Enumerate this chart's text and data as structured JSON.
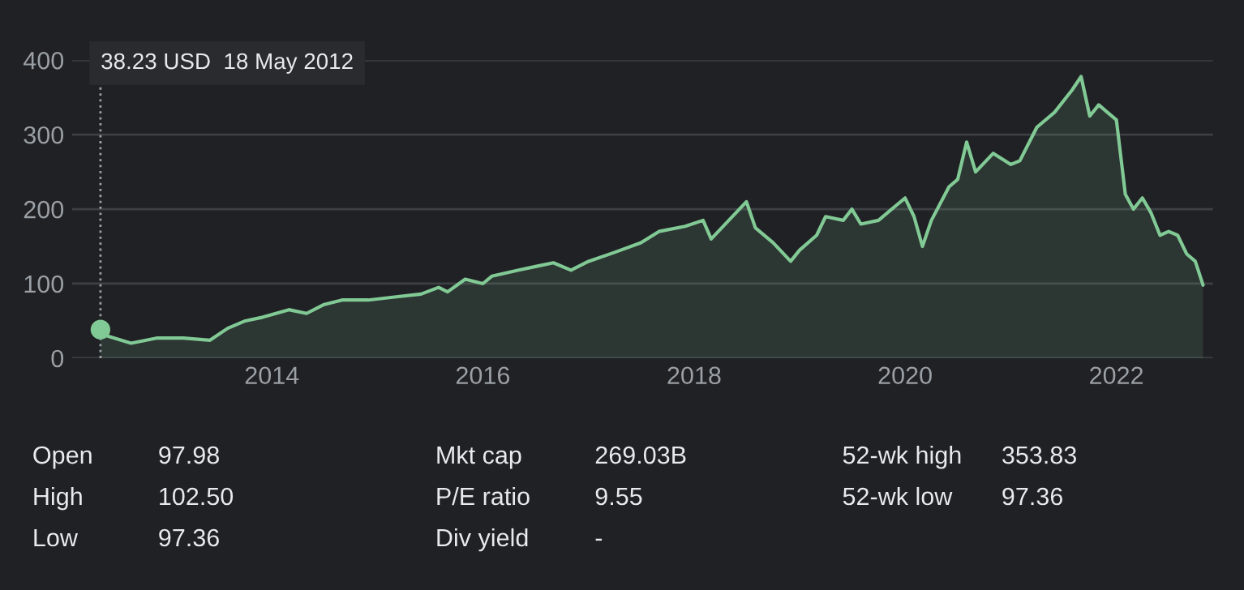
{
  "chart_data": {
    "type": "area",
    "x": [
      "2012-05-18",
      "2012-06",
      "2012-09",
      "2012-12",
      "2013-03",
      "2013-06",
      "2013-08",
      "2013-10",
      "2013-12",
      "2014-03",
      "2014-05",
      "2014-07",
      "2014-09",
      "2014-12",
      "2015-03",
      "2015-06",
      "2015-08",
      "2015-09",
      "2015-11",
      "2016-01",
      "2016-02",
      "2016-05",
      "2016-07",
      "2016-09",
      "2016-11",
      "2017-01",
      "2017-04",
      "2017-07",
      "2017-09",
      "2017-12",
      "2018-02",
      "2018-03",
      "2018-05",
      "2018-07",
      "2018-08",
      "2018-10",
      "2018-12",
      "2019-01",
      "2019-03",
      "2019-04",
      "2019-06",
      "2019-07",
      "2019-08",
      "2019-10",
      "2019-12",
      "2020-01",
      "2020-02",
      "2020-03",
      "2020-04",
      "2020-06",
      "2020-07",
      "2020-08",
      "2020-09",
      "2020-11",
      "2021-01",
      "2021-02",
      "2021-04",
      "2021-06",
      "2021-08",
      "2021-09",
      "2021-10",
      "2021-11",
      "2021-12",
      "2022-01",
      "2022-02",
      "2022-03",
      "2022-04",
      "2022-05",
      "2022-06",
      "2022-07",
      "2022-08",
      "2022-09",
      "2022-10",
      "2022-10-28"
    ],
    "series": [
      {
        "color": "#81c995",
        "values": [
          38.23,
          31,
          20,
          27,
          27,
          24,
          40,
          50,
          55,
          65,
          60,
          72,
          78,
          78,
          82,
          86,
          95,
          89,
          106,
          100,
          110,
          118,
          123,
          128,
          118,
          130,
          142,
          155,
          170,
          177,
          185,
          160,
          185,
          210,
          175,
          155,
          130,
          145,
          165,
          190,
          185,
          200,
          180,
          185,
          205,
          215,
          190,
          150,
          185,
          230,
          240,
          290,
          250,
          275,
          260,
          265,
          310,
          330,
          360,
          378,
          325,
          340,
          330,
          320,
          220,
          200,
          215,
          195,
          165,
          170,
          165,
          140,
          130,
          98
        ]
      },
      {
        "type": "scatter",
        "color": "#81c995",
        "x": [
          "2012-05-18"
        ],
        "values": [
          38.23
        ]
      }
    ],
    "xlim": [
      "2012-02-10",
      "2022-12-01"
    ],
    "xticks": [
      {
        "value": "2014-01-01",
        "label": "2014"
      },
      {
        "value": "2016-01-01",
        "label": "2016"
      },
      {
        "value": "2018-01-01",
        "label": "2018"
      },
      {
        "value": "2020-01-01",
        "label": "2020"
      },
      {
        "value": "2022-01-01",
        "label": "2022"
      }
    ],
    "ylim": [
      0,
      400
    ],
    "yticks": [
      0,
      100,
      200,
      300,
      400
    ],
    "grid": "y",
    "ref_lines": [
      {
        "axis": "x",
        "value": "2012-05-18",
        "line_style": "dotted",
        "color": "#9aa0a6"
      }
    ],
    "annotations": [
      "38.23 USD  18 May 2012",
      "Open",
      "97.98",
      "Mkt cap",
      "269.03B",
      "52-wk high",
      "353.83",
      "High",
      "102.50",
      "P/E ratio",
      "9.55",
      "52-wk low",
      "97.36",
      "Low",
      "97.36",
      "Div yield",
      "-"
    ]
  }
}
